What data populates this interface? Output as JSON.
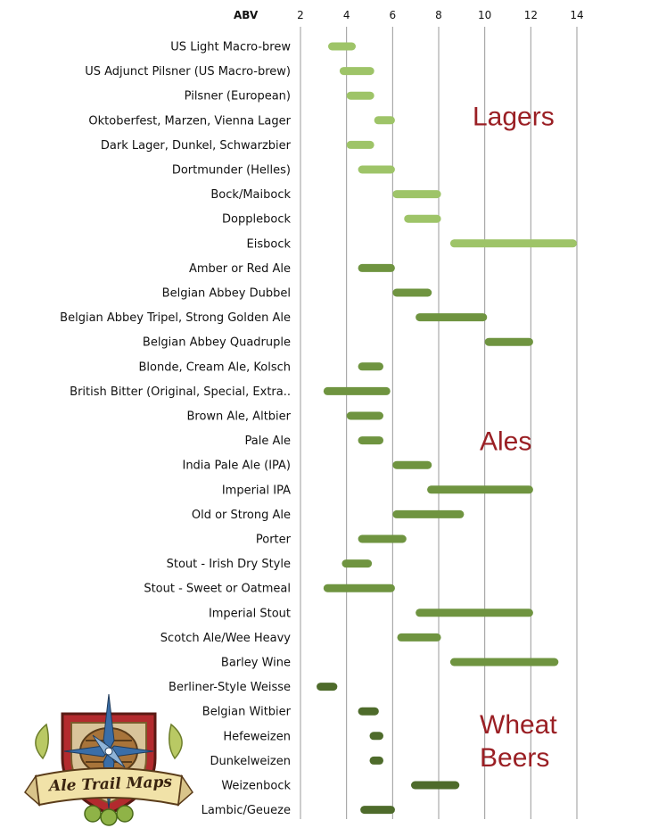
{
  "colors": {
    "lagers": "#9ec468",
    "ales": "#6f9440",
    "wheat": "#4e6b2b",
    "group_label": "#9a1f24",
    "grid": "#999999"
  },
  "logo": {
    "text": "Ale Trail Maps"
  },
  "chart_data": {
    "type": "bar",
    "orientation": "horizontal-range",
    "axis_title": "ABV",
    "xlim": [
      2,
      14
    ],
    "xticks": [
      2,
      4,
      6,
      8,
      10,
      12,
      14
    ],
    "grid": true,
    "groups": [
      {
        "name": "Lagers",
        "label_lines": [
          "Lagers"
        ],
        "categories": [
          {
            "name": "US Light Macro-brew",
            "min": 3.2,
            "max": 4.4
          },
          {
            "name": "US Adjunct Pilsner (US Macro-brew)",
            "min": 3.7,
            "max": 5.2
          },
          {
            "name": "Pilsner (European)",
            "min": 4.0,
            "max": 5.2
          },
          {
            "name": "Oktoberfest, Marzen, Vienna Lager",
            "min": 5.2,
            "max": 6.1
          },
          {
            "name": "Dark Lager, Dunkel, Schwarzbier",
            "min": 4.0,
            "max": 5.2
          },
          {
            "name": "Dortmunder (Helles)",
            "min": 4.5,
            "max": 6.1
          },
          {
            "name": "Bock/Maibock",
            "min": 6.0,
            "max": 8.1
          },
          {
            "name": "Dopplebock",
            "min": 6.5,
            "max": 8.1
          },
          {
            "name": "Eisbock",
            "min": 8.5,
            "max": 14.0
          }
        ]
      },
      {
        "name": "Ales",
        "label_lines": [
          "Ales"
        ],
        "categories": [
          {
            "name": "Amber or Red Ale",
            "min": 4.5,
            "max": 6.1
          },
          {
            "name": "Belgian Abbey Dubbel",
            "min": 6.0,
            "max": 7.7
          },
          {
            "name": "Belgian Abbey Tripel, Strong Golden Ale",
            "min": 7.0,
            "max": 10.1
          },
          {
            "name": "Belgian Abbey Quadruple",
            "min": 10.0,
            "max": 12.1
          },
          {
            "name": "Blonde, Cream Ale, Kolsch",
            "min": 4.5,
            "max": 5.6
          },
          {
            "name": "British Bitter (Original, Special, Extra..",
            "min": 3.0,
            "max": 5.9
          },
          {
            "name": "Brown Ale, Altbier",
            "min": 4.0,
            "max": 5.6
          },
          {
            "name": "Pale Ale",
            "min": 4.5,
            "max": 5.6
          },
          {
            "name": "India Pale Ale (IPA)",
            "min": 6.0,
            "max": 7.7
          },
          {
            "name": "Imperial IPA",
            "min": 7.5,
            "max": 12.1
          },
          {
            "name": "Old or Strong Ale",
            "min": 6.0,
            "max": 9.1
          },
          {
            "name": "Porter",
            "min": 4.5,
            "max": 6.6
          },
          {
            "name": "Stout - Irish Dry Style",
            "min": 3.8,
            "max": 5.1
          },
          {
            "name": "Stout - Sweet or Oatmeal",
            "min": 3.0,
            "max": 6.1
          },
          {
            "name": "Imperial Stout",
            "min": 7.0,
            "max": 12.1
          },
          {
            "name": "Scotch Ale/Wee Heavy",
            "min": 6.2,
            "max": 8.1
          },
          {
            "name": "Barley Wine",
            "min": 8.5,
            "max": 13.2
          }
        ]
      },
      {
        "name": "Wheat Beers",
        "label_lines": [
          "Wheat",
          "Beers"
        ],
        "categories": [
          {
            "name": "Berliner-Style Weisse",
            "min": 2.7,
            "max": 3.6
          },
          {
            "name": "Belgian Witbier",
            "min": 4.5,
            "max": 5.4
          },
          {
            "name": "Hefeweizen",
            "min": 5.0,
            "max": 5.6
          },
          {
            "name": "Dunkelweizen",
            "min": 5.0,
            "max": 5.6
          },
          {
            "name": "Weizenbock",
            "min": 6.8,
            "max": 8.9
          },
          {
            "name": "Lambic/Geueze",
            "min": 4.6,
            "max": 6.1
          }
        ]
      }
    ]
  }
}
